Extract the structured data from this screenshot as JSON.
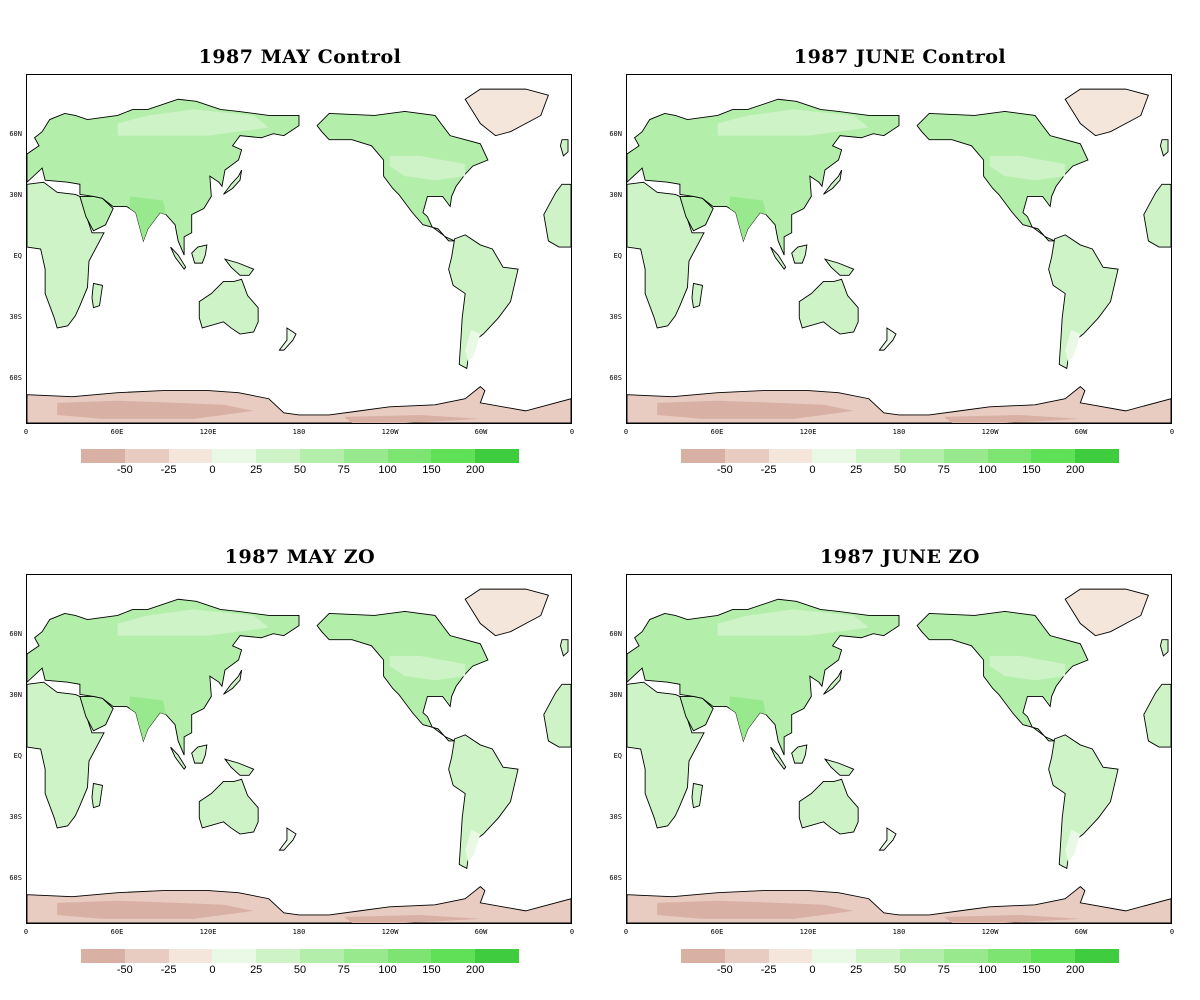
{
  "panels": [
    {
      "title": "1987 MAY Control"
    },
    {
      "title": "1987 JUNE Control"
    },
    {
      "title": "1987 MAY ZO"
    },
    {
      "title": "1987 JUNE ZO"
    }
  ],
  "lat_labels": [
    "60N",
    "30N",
    "EQ",
    "30S",
    "60S"
  ],
  "lon_labels": [
    "0",
    "60E",
    "120E",
    "180",
    "120W",
    "60W",
    "0"
  ],
  "colorbar": {
    "labels": [
      "-50",
      "-25",
      "0",
      "25",
      "50",
      "75",
      "100",
      "150",
      "200"
    ],
    "colors": [
      "#d9b0a4",
      "#e8cbc1",
      "#f5e6dc",
      "#eaf8e6",
      "#cdf3c7",
      "#b3eeaa",
      "#98e88e",
      "#7de472",
      "#5fe056",
      "#3fcc3f"
    ]
  },
  "map_colors": {
    "land_light": "#cdf3c7",
    "land_mid": "#b3eeaa",
    "land_dark": "#98e88e",
    "land_pale": "#eaf8e6",
    "polar": "#e8cbc1",
    "polar_dark": "#d9b0a4",
    "greenland": "#f5e6dc",
    "ocean": "#ffffff"
  }
}
